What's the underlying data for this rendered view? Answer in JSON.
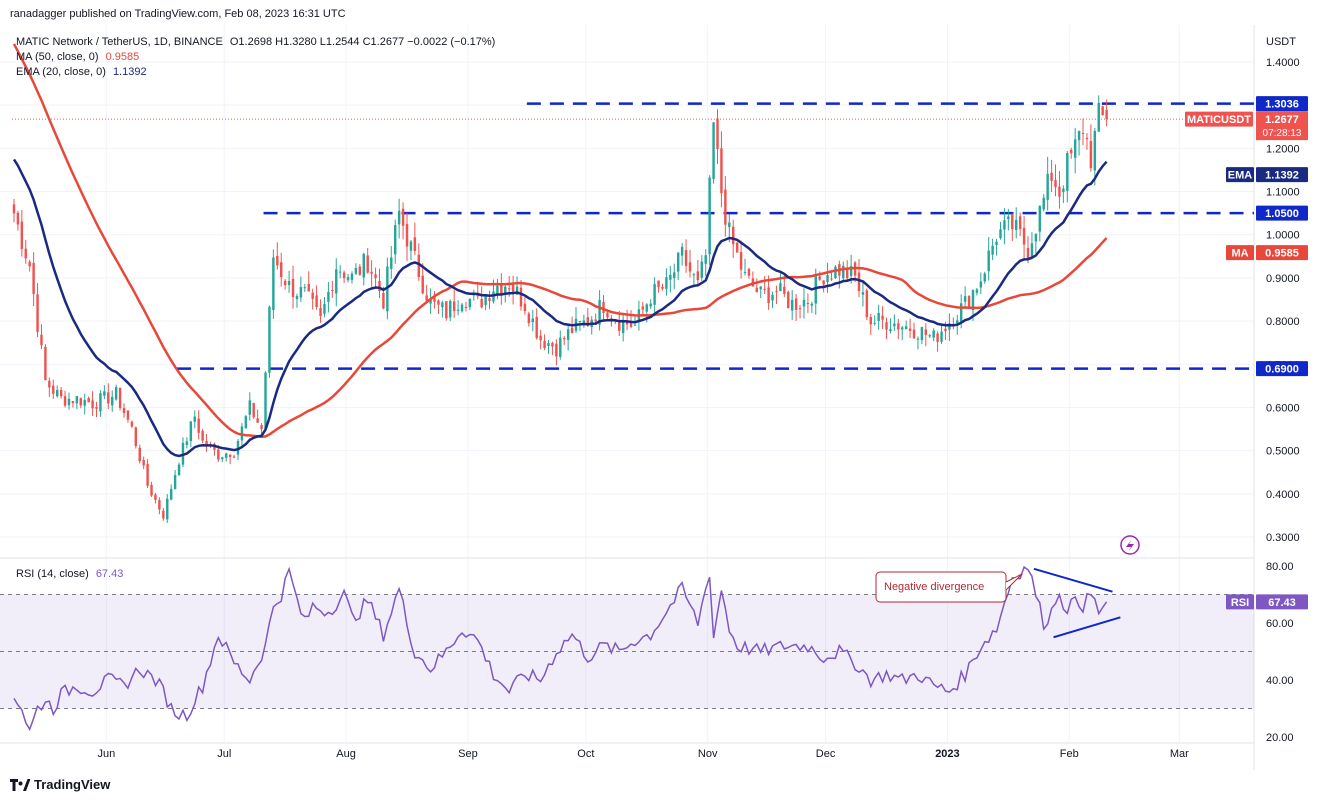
{
  "header": {
    "published": "ranadagger published on TradingView.com, Feb 08, 2023 16:31 UTC"
  },
  "legend": {
    "symbol": "MATIC Network / TetherUS, 1D, BINANCE",
    "ohlc": "O1.2698  H1.3280  L1.2544  C1.2677  −0.0022 (−0.17%)",
    "ma_label": "MA (50, close, 0)",
    "ma_value": "0.9585",
    "ema_label": "EMA (20, close, 0)",
    "ema_value": "1.1392",
    "rsi_label": "RSI (14, close)",
    "rsi_value": "67.43"
  },
  "price_axis": {
    "currency": "USDT",
    "ticks": [
      "1.4000",
      "1.3000",
      "1.2000",
      "1.1000",
      "1.0000",
      "0.9000",
      "0.8000",
      "0.7000",
      "0.6000",
      "0.5000",
      "0.4000",
      "0.3000"
    ],
    "tick_values": [
      1.4,
      1.3,
      1.2,
      1.1,
      1.0,
      0.9,
      0.8,
      0.7,
      0.6,
      0.5,
      0.4,
      0.3
    ],
    "range": [
      0.27,
      1.45
    ]
  },
  "rsi_axis": {
    "ticks": [
      "80.00",
      "60.00",
      "40.00",
      "20.00"
    ],
    "tick_values": [
      80,
      60,
      40,
      20
    ],
    "range": [
      17,
      85
    ],
    "band": [
      30,
      70
    ],
    "mid": 50
  },
  "time_axis": {
    "labels": [
      "Jun",
      "Jul",
      "Aug",
      "Sep",
      "Oct",
      "Nov",
      "Dec",
      "2023",
      "Feb",
      "Mar"
    ],
    "label_days": [
      24,
      54,
      85,
      116,
      146,
      177,
      207,
      238,
      269,
      297
    ],
    "total_days": 316
  },
  "badges": {
    "r1": "1.3036",
    "symbol_tag": "MATICUSDT",
    "last_price": "1.2677",
    "countdown": "07:28:13",
    "ema_tag": "EMA",
    "ema_val": "1.1392",
    "r2": "1.0500",
    "ma_tag": "MA",
    "ma_val": "0.9585",
    "s1": "0.6900",
    "rsi_tag": "RSI",
    "rsi_val": "67.43"
  },
  "annotation": {
    "text": "Negative divergence"
  },
  "footer": {
    "brand": "TradingView"
  },
  "colors": {
    "up": "#26a69a",
    "down": "#ef5350",
    "ma": "#e8483a",
    "ema": "#1a2a80",
    "level": "#1028c8",
    "rsi": "#7e57c2",
    "annotation": "#b22833"
  },
  "chart_data": [
    {
      "type": "candlestick",
      "title": "MATIC Network / TetherUS, 1D, BINANCE",
      "levels": [
        1.3036,
        1.05,
        0.69
      ],
      "price_waypoints": {
        "day": [
          0,
          4,
          8,
          12,
          16,
          20,
          26,
          30,
          34,
          38,
          42,
          46,
          48,
          52,
          56,
          60,
          63,
          66,
          70,
          74,
          78,
          82,
          86,
          90,
          94,
          98,
          102,
          106,
          110,
          114,
          118,
          122,
          126,
          130,
          134,
          138,
          142,
          146,
          150,
          154,
          158,
          162,
          166,
          170,
          174,
          176,
          178,
          180,
          182,
          184,
          186,
          190,
          194,
          198,
          202,
          206,
          210,
          214,
          218,
          222,
          226,
          230,
          234,
          238,
          242,
          246,
          250,
          254,
          258,
          262,
          264,
          266,
          268,
          270,
          272,
          274,
          276,
          278
        ],
        "close": [
          1.05,
          0.93,
          0.66,
          0.62,
          0.62,
          0.61,
          0.63,
          0.55,
          0.42,
          0.35,
          0.48,
          0.58,
          0.52,
          0.49,
          0.5,
          0.6,
          0.55,
          0.95,
          0.88,
          0.86,
          0.8,
          0.93,
          0.9,
          0.94,
          0.85,
          1.05,
          0.94,
          0.84,
          0.82,
          0.86,
          0.84,
          0.88,
          0.89,
          0.84,
          0.76,
          0.74,
          0.78,
          0.8,
          0.84,
          0.8,
          0.79,
          0.86,
          0.88,
          0.95,
          0.88,
          0.95,
          1.25,
          1.1,
          1.0,
          0.95,
          0.9,
          0.86,
          0.87,
          0.84,
          0.85,
          0.91,
          0.92,
          0.9,
          0.8,
          0.8,
          0.79,
          0.78,
          0.76,
          0.8,
          0.84,
          0.9,
          1.0,
          1.02,
          0.97,
          1.08,
          1.14,
          1.1,
          1.16,
          1.2,
          1.25,
          1.18,
          1.27,
          1.2677
        ]
      },
      "ma_period": 50,
      "ema_period": 20
    },
    {
      "type": "line",
      "title": "RSI (14, close)",
      "rsi_waypoints": {
        "day": [
          0,
          2,
          4,
          6,
          8,
          10,
          12,
          16,
          20,
          24,
          28,
          32,
          36,
          38,
          40,
          42,
          44,
          48,
          52,
          56,
          60,
          64,
          66,
          68,
          70,
          72,
          74,
          76,
          80,
          84,
          86,
          88,
          90,
          94,
          98,
          100,
          102,
          106,
          110,
          114,
          118,
          122,
          126,
          130,
          134,
          138,
          142,
          146,
          150,
          154,
          158,
          162,
          166,
          170,
          174,
          176,
          177,
          178,
          180,
          182,
          184,
          190,
          196,
          202,
          206,
          210,
          214,
          218,
          222,
          226,
          230,
          234,
          238,
          242,
          246,
          250,
          254,
          258,
          262,
          264,
          266,
          268,
          270,
          272,
          274,
          276,
          278
        ],
        "value": [
          35,
          30,
          22,
          30,
          33,
          30,
          35,
          38,
          36,
          40,
          38,
          44,
          40,
          36,
          30,
          28,
          28,
          38,
          56,
          46,
          40,
          52,
          66,
          70,
          78,
          68,
          60,
          66,
          64,
          70,
          62,
          64,
          68,
          56,
          72,
          60,
          50,
          44,
          50,
          58,
          54,
          42,
          36,
          42,
          40,
          50,
          56,
          48,
          52,
          50,
          54,
          56,
          64,
          72,
          60,
          72,
          78,
          55,
          72,
          58,
          52,
          50,
          52,
          52,
          48,
          50,
          46,
          40,
          42,
          40,
          42,
          38,
          36,
          42,
          52,
          58,
          76,
          80,
          60,
          64,
          72,
          62,
          70,
          66,
          70,
          64,
          67
        ]
      },
      "annotation": "Negative divergence",
      "upper_trendline": [
        [
          260,
          79
        ],
        [
          280,
          71
        ]
      ],
      "lower_trendline": [
        [
          265,
          55
        ],
        [
          282,
          62
        ]
      ]
    }
  ]
}
